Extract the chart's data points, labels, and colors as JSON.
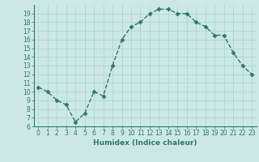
{
  "x": [
    0,
    1,
    2,
    3,
    4,
    5,
    6,
    7,
    8,
    9,
    10,
    11,
    12,
    13,
    14,
    15,
    16,
    17,
    18,
    19,
    20,
    21,
    22,
    23
  ],
  "y": [
    10.5,
    10.0,
    9.0,
    8.5,
    6.5,
    7.5,
    10.0,
    9.5,
    13.0,
    16.0,
    17.5,
    18.0,
    19.0,
    19.5,
    19.5,
    19.0,
    19.0,
    18.0,
    17.5,
    16.5,
    16.5,
    14.5,
    13.0,
    12.0
  ],
  "xlabel": "Humidex (Indice chaleur)",
  "ylim_min": 6,
  "ylim_max": 20,
  "xlim_min": -0.5,
  "xlim_max": 23.5,
  "yticks": [
    6,
    7,
    8,
    9,
    10,
    11,
    12,
    13,
    14,
    15,
    16,
    17,
    18,
    19
  ],
  "xticks": [
    0,
    1,
    2,
    3,
    4,
    5,
    6,
    7,
    8,
    9,
    10,
    11,
    12,
    13,
    14,
    15,
    16,
    17,
    18,
    19,
    20,
    21,
    22,
    23
  ],
  "line_color": "#2d7a6a",
  "bg_color": "#cce8e4",
  "grid_color": "#b0d5d0",
  "spine_color": "#2d7a6a",
  "tick_label_color": "#2d7a6a",
  "xlabel_color": "#2d7a6a",
  "tick_fontsize": 5.5,
  "xlabel_fontsize": 6.5,
  "linewidth": 1.0,
  "markersize": 2.5
}
